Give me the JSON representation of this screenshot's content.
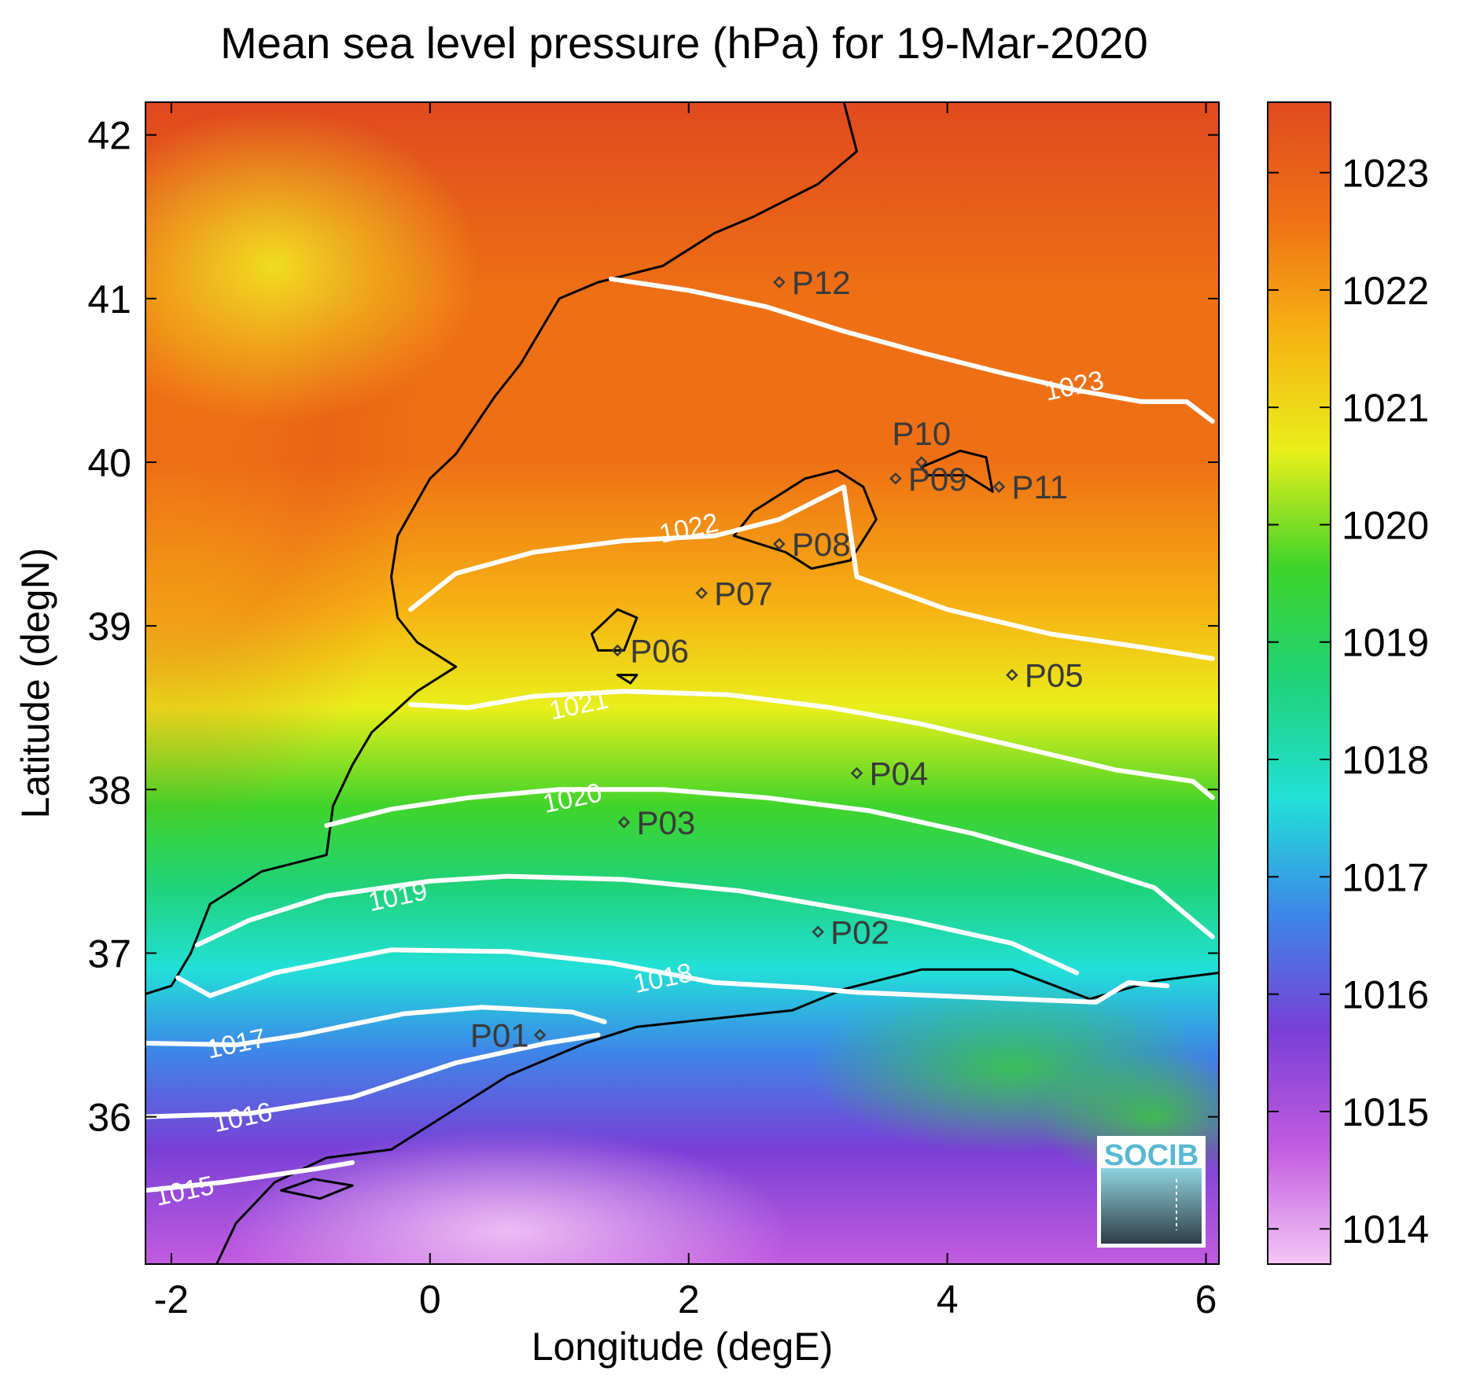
{
  "title": "Mean sea level pressure (hPa) for 19-Mar-2020",
  "axes": {
    "xlabel": "Longitude (degE)",
    "ylabel": "Latitude (degN)",
    "xlim": [
      -2.2,
      6.1
    ],
    "ylim": [
      35.1,
      42.2
    ],
    "xticks": [
      -2,
      0,
      2,
      4,
      6
    ],
    "yticks": [
      36,
      37,
      38,
      39,
      40,
      41,
      42
    ]
  },
  "colorbar": {
    "range": [
      1013.7,
      1023.6
    ],
    "ticks": [
      1014,
      1015,
      1016,
      1017,
      1018,
      1019,
      1020,
      1021,
      1022,
      1023
    ],
    "colors": [
      "#f3c6f5",
      "#c25ce0",
      "#7a3fd6",
      "#3d86e8",
      "#22e0d8",
      "#1fd37a",
      "#3fd42a",
      "#e9ef1a",
      "#f7b313",
      "#ef7014",
      "#e04a1f"
    ]
  },
  "contours": [
    {
      "level": "1015",
      "label_lon": -1.9,
      "label_lat": 35.55,
      "points": [
        [
          -2.2,
          35.55
        ],
        [
          -1.6,
          35.6
        ],
        [
          -0.9,
          35.68
        ],
        [
          -0.6,
          35.72
        ]
      ]
    },
    {
      "level": "1016",
      "label_lon": -1.45,
      "label_lat": 36.0,
      "points": [
        [
          -2.2,
          36.0
        ],
        [
          -1.4,
          36.02
        ],
        [
          -0.6,
          36.12
        ],
        [
          0.2,
          36.33
        ],
        [
          0.9,
          36.45
        ],
        [
          1.3,
          36.5
        ]
      ]
    },
    {
      "level": "1017",
      "label_lon": -1.5,
      "label_lat": 36.45,
      "points": [
        [
          -2.2,
          36.45
        ],
        [
          -1.5,
          36.44
        ],
        [
          -1.0,
          36.5
        ],
        [
          -0.2,
          36.63
        ],
        [
          0.4,
          36.67
        ],
        [
          1.1,
          36.64
        ],
        [
          1.35,
          36.58
        ]
      ]
    },
    {
      "level": "1018",
      "label_lon": 1.8,
      "label_lat": 36.85,
      "points": [
        [
          -1.95,
          36.85
        ],
        [
          -1.7,
          36.74
        ],
        [
          -1.2,
          36.88
        ],
        [
          -0.3,
          37.02
        ],
        [
          0.6,
          37.01
        ],
        [
          1.4,
          36.94
        ],
        [
          2.2,
          36.82
        ],
        [
          2.9,
          36.79
        ],
        [
          3.3,
          36.76
        ],
        [
          5.15,
          36.7
        ],
        [
          5.4,
          36.82
        ],
        [
          5.7,
          36.8
        ]
      ]
    },
    {
      "level": "1019",
      "label_lon": -0.25,
      "label_lat": 37.35,
      "points": [
        [
          -1.8,
          37.05
        ],
        [
          -1.4,
          37.2
        ],
        [
          -0.8,
          37.35
        ],
        [
          0.0,
          37.44
        ],
        [
          0.6,
          37.47
        ],
        [
          1.5,
          37.45
        ],
        [
          2.4,
          37.38
        ],
        [
          3.2,
          37.27
        ],
        [
          3.7,
          37.2
        ],
        [
          4.5,
          37.06
        ],
        [
          5.0,
          36.88
        ]
      ]
    },
    {
      "level": "1020",
      "label_lon": 1.1,
      "label_lat": 37.95,
      "points": [
        [
          -0.8,
          37.78
        ],
        [
          -0.3,
          37.88
        ],
        [
          0.3,
          37.95
        ],
        [
          1.0,
          38.0
        ],
        [
          1.8,
          38.0
        ],
        [
          2.6,
          37.95
        ],
        [
          3.4,
          37.87
        ],
        [
          4.2,
          37.73
        ],
        [
          5.0,
          37.55
        ],
        [
          5.6,
          37.4
        ],
        [
          6.05,
          37.1
        ]
      ]
    },
    {
      "level": "1021",
      "label_lon": 1.15,
      "label_lat": 38.52,
      "points": [
        [
          -0.15,
          38.52
        ],
        [
          0.3,
          38.5
        ],
        [
          0.8,
          38.57
        ],
        [
          1.5,
          38.6
        ],
        [
          2.3,
          38.58
        ],
        [
          3.1,
          38.5
        ],
        [
          3.8,
          38.4
        ],
        [
          4.5,
          38.27
        ],
        [
          5.3,
          38.12
        ],
        [
          5.9,
          38.05
        ],
        [
          6.05,
          37.95
        ]
      ]
    },
    {
      "level": "1022",
      "label_lon": 2.0,
      "label_lat": 39.6,
      "points": [
        [
          -0.15,
          39.1
        ],
        [
          0.2,
          39.32
        ],
        [
          0.8,
          39.45
        ],
        [
          1.5,
          39.52
        ],
        [
          2.2,
          39.55
        ],
        [
          2.7,
          39.65
        ],
        [
          3.2,
          39.85
        ],
        [
          3.3,
          39.3
        ],
        [
          4.0,
          39.1
        ],
        [
          4.8,
          38.95
        ],
        [
          5.5,
          38.87
        ],
        [
          6.05,
          38.8
        ]
      ]
    },
    {
      "level": "1023",
      "label_lon": 4.98,
      "label_lat": 40.47,
      "points": [
        [
          1.4,
          41.12
        ],
        [
          2.0,
          41.05
        ],
        [
          2.6,
          40.95
        ],
        [
          3.2,
          40.8
        ],
        [
          3.8,
          40.67
        ],
        [
          4.4,
          40.55
        ],
        [
          5.0,
          40.44
        ],
        [
          5.5,
          40.37
        ],
        [
          5.85,
          40.37
        ],
        [
          6.05,
          40.25
        ]
      ]
    }
  ],
  "stations": [
    {
      "name": "P01",
      "lon": 0.85,
      "lat": 36.5
    },
    {
      "name": "P02",
      "lon": 3.0,
      "lat": 37.13
    },
    {
      "name": "P03",
      "lon": 1.5,
      "lat": 37.8
    },
    {
      "name": "P04",
      "lon": 3.3,
      "lat": 38.1
    },
    {
      "name": "P05",
      "lon": 4.5,
      "lat": 38.7
    },
    {
      "name": "P06",
      "lon": 1.45,
      "lat": 38.85
    },
    {
      "name": "P07",
      "lon": 2.1,
      "lat": 39.2
    },
    {
      "name": "P08",
      "lon": 2.7,
      "lat": 39.5
    },
    {
      "name": "P09",
      "lon": 3.6,
      "lat": 39.9
    },
    {
      "name": "P10",
      "lon": 3.8,
      "lat": 40.0
    },
    {
      "name": "P11",
      "lon": 4.4,
      "lat": 39.85
    },
    {
      "name": "P12",
      "lon": 2.7,
      "lat": 41.1
    }
  ],
  "coastline_iberia": [
    [
      3.2,
      42.2
    ],
    [
      3.3,
      41.9
    ],
    [
      3.0,
      41.7
    ],
    [
      2.5,
      41.5
    ],
    [
      2.2,
      41.4
    ],
    [
      1.8,
      41.2
    ],
    [
      1.3,
      41.1
    ],
    [
      1.0,
      41.0
    ],
    [
      0.85,
      40.8
    ],
    [
      0.7,
      40.6
    ],
    [
      0.5,
      40.4
    ],
    [
      0.2,
      40.05
    ],
    [
      0.0,
      39.9
    ],
    [
      -0.25,
      39.55
    ],
    [
      -0.3,
      39.3
    ],
    [
      -0.25,
      39.05
    ],
    [
      -0.1,
      38.9
    ],
    [
      0.2,
      38.75
    ],
    [
      -0.1,
      38.6
    ],
    [
      -0.45,
      38.35
    ],
    [
      -0.6,
      38.15
    ],
    [
      -0.75,
      37.9
    ],
    [
      -0.8,
      37.6
    ],
    [
      -1.3,
      37.5
    ],
    [
      -1.7,
      37.3
    ],
    [
      -1.85,
      37.0
    ],
    [
      -2.0,
      36.8
    ],
    [
      -2.2,
      36.75
    ]
  ],
  "coastline_africa": [
    [
      6.1,
      36.88
    ],
    [
      5.6,
      36.83
    ],
    [
      5.1,
      36.72
    ],
    [
      4.5,
      36.9
    ],
    [
      3.8,
      36.9
    ],
    [
      3.2,
      36.78
    ],
    [
      2.8,
      36.65
    ],
    [
      2.2,
      36.6
    ],
    [
      1.6,
      36.55
    ],
    [
      1.2,
      36.45
    ],
    [
      0.6,
      36.25
    ],
    [
      0.1,
      36.0
    ],
    [
      -0.3,
      35.8
    ],
    [
      -0.8,
      35.75
    ],
    [
      -1.2,
      35.6
    ],
    [
      -1.5,
      35.35
    ],
    [
      -1.65,
      35.1
    ]
  ],
  "islands": [
    [
      [
        2.35,
        39.55
      ],
      [
        2.5,
        39.7
      ],
      [
        2.9,
        39.9
      ],
      [
        3.15,
        39.95
      ],
      [
        3.35,
        39.85
      ],
      [
        3.45,
        39.65
      ],
      [
        3.25,
        39.4
      ],
      [
        2.95,
        39.35
      ],
      [
        2.75,
        39.45
      ],
      [
        2.35,
        39.55
      ]
    ],
    [
      [
        3.8,
        39.97
      ],
      [
        4.1,
        40.07
      ],
      [
        4.3,
        40.03
      ],
      [
        4.35,
        39.82
      ],
      [
        4.15,
        39.92
      ],
      [
        3.85,
        39.92
      ],
      [
        3.8,
        39.97
      ]
    ],
    [
      [
        1.25,
        38.95
      ],
      [
        1.45,
        39.1
      ],
      [
        1.6,
        39.05
      ],
      [
        1.5,
        38.85
      ],
      [
        1.3,
        38.85
      ],
      [
        1.25,
        38.95
      ]
    ],
    [
      [
        1.45,
        38.7
      ],
      [
        1.6,
        38.7
      ],
      [
        1.55,
        38.65
      ],
      [
        1.45,
        38.7
      ]
    ],
    [
      [
        -1.15,
        35.55
      ],
      [
        -0.9,
        35.62
      ],
      [
        -0.6,
        35.58
      ],
      [
        -0.85,
        35.5
      ],
      [
        -1.15,
        35.55
      ]
    ]
  ],
  "logo": {
    "text": "SOCIB"
  }
}
